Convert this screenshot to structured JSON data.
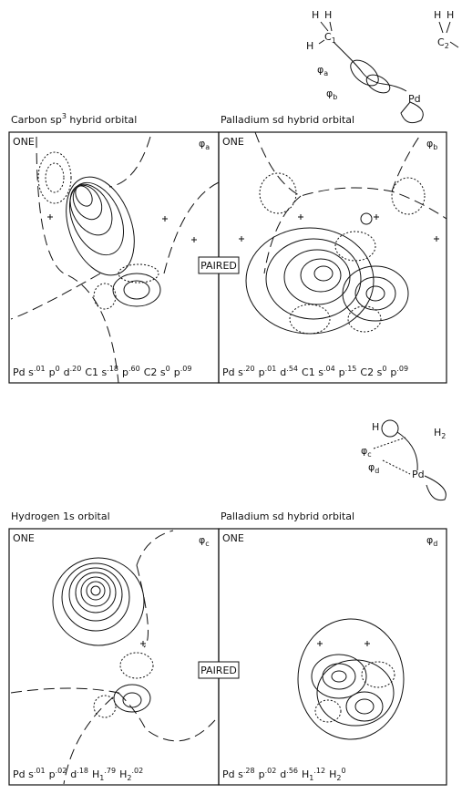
{
  "top_schematic": {
    "labels": [
      {
        "text": "H"
      },
      {
        "text": "H"
      },
      {
        "text": "C",
        "sub": "1"
      },
      {
        "text": "H"
      },
      {
        "text": "H"
      },
      {
        "text": "H"
      },
      {
        "text": "C",
        "sub": "2"
      },
      {
        "text": "Pd"
      },
      {
        "text": "φ",
        "sub": "a"
      },
      {
        "text": "φ",
        "sub": "b"
      }
    ]
  },
  "bottom_schematic": {
    "labels": [
      {
        "text": "H"
      },
      {
        "text": "H",
        "sub": "2"
      },
      {
        "text": "φ",
        "sub": "c"
      },
      {
        "text": "φ",
        "sub": "d"
      },
      {
        "text": "Pd"
      }
    ]
  },
  "paired_labels": [
    "PAIRED",
    "PAIRED"
  ],
  "panels": [
    {
      "title": {
        "before": "Carbon sp",
        "sup": "3",
        "after": " hybrid orbital"
      },
      "label": "ONE",
      "orbital": {
        "text": "φ",
        "sub": "a"
      },
      "composition": [
        {
          "base": "Pd s",
          "sup": ".01"
        },
        {
          "base": "p",
          "sup": "0"
        },
        {
          "base": "d",
          "sup": ".20"
        },
        {
          "base": "C1 s",
          "sup": ".18"
        },
        {
          "base": "p",
          "sup": ".60"
        },
        {
          "base": "C2 s",
          "sup": "0"
        },
        {
          "base": "p",
          "sup": ".09"
        }
      ]
    },
    {
      "title": {
        "before": "Palladium sd hybrid orbital"
      },
      "label": "ONE",
      "orbital": {
        "text": "φ",
        "sub": "b"
      },
      "composition": [
        {
          "base": "Pd s",
          "sup": ".20"
        },
        {
          "base": "p",
          "sup": ".01"
        },
        {
          "base": "d",
          "sup": ".54"
        },
        {
          "base": "C1 s",
          "sup": ".04"
        },
        {
          "base": "p",
          "sup": ".15"
        },
        {
          "base": "C2 s",
          "sup": "0"
        },
        {
          "base": "p",
          "sup": ".09"
        }
      ]
    },
    {
      "title": {
        "before": "Hydrogen 1s orbital"
      },
      "label": "ONE",
      "orbital": {
        "text": "φ",
        "sub": "c"
      },
      "composition": [
        {
          "base": "Pd s",
          "sup": ".01"
        },
        {
          "base": "p",
          "sup": ".02"
        },
        {
          "base": "d",
          "sup": ".18"
        },
        {
          "base": "H",
          "sub": "1",
          "sup": ".79"
        },
        {
          "base": "H",
          "sub": "2",
          "sup": ".02"
        }
      ]
    },
    {
      "title": {
        "before": "Palladium sd hybrid orbital"
      },
      "label": "ONE",
      "orbital": {
        "text": "φ",
        "sub": "d"
      },
      "composition": [
        {
          "base": "Pd s",
          "sup": ".28"
        },
        {
          "base": "p",
          "sup": ".02"
        },
        {
          "base": "d",
          "sup": ".56"
        },
        {
          "base": "H",
          "sub": "1",
          "sup": ".12"
        },
        {
          "base": "H",
          "sub": "2",
          "sup": "0"
        }
      ]
    }
  ]
}
